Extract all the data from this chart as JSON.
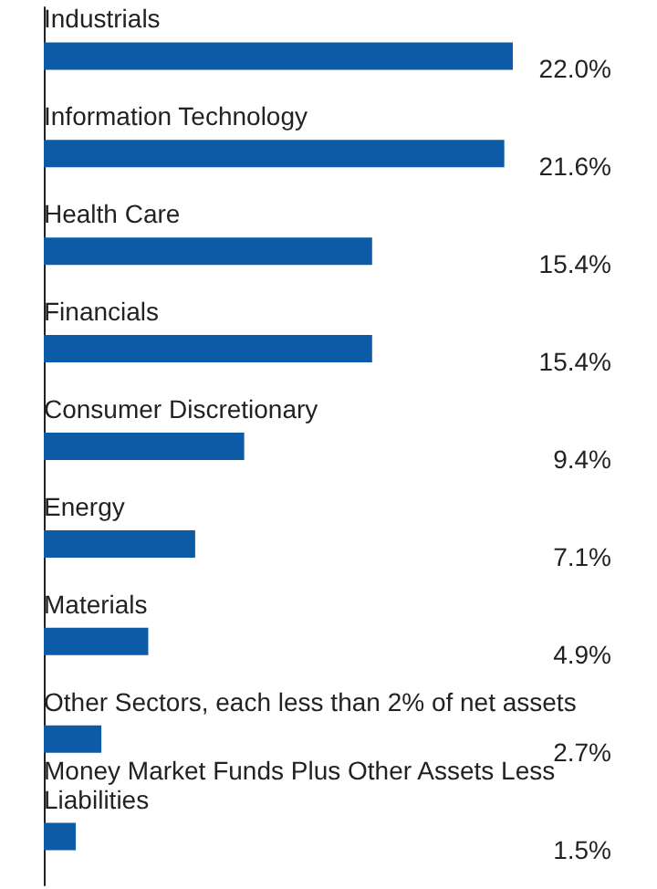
{
  "chart_data": {
    "type": "bar",
    "orientation": "horizontal",
    "color": "#0d5ba6",
    "categories": [
      "Industrials",
      "Information Technology",
      "Health Care",
      "Financials",
      "Consumer Discretionary",
      "Energy",
      "Materials",
      "Other Sectors, each less than 2% of net assets",
      "Money Market Funds Plus Other Assets Less Liabilities"
    ],
    "values": [
      22.0,
      21.6,
      15.4,
      15.4,
      9.4,
      7.1,
      4.9,
      2.7,
      1.5
    ],
    "value_labels": [
      "22.0%",
      "21.6%",
      "15.4%",
      "15.4%",
      "9.4%",
      "7.1%",
      "4.9%",
      "2.7%",
      "1.5%"
    ]
  }
}
